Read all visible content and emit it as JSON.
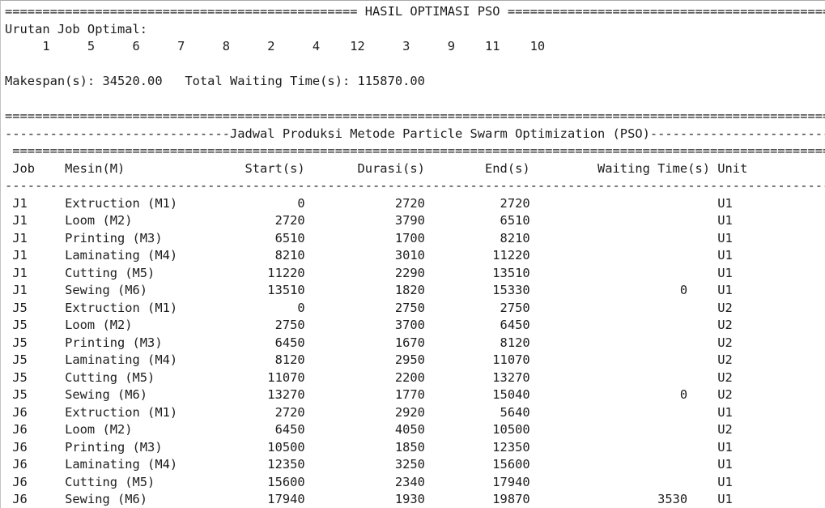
{
  "console": {
    "title": "HASIL OPTIMASI PSO",
    "urutan_label": "Urutan Job Optimal:",
    "job_order": [
      "1",
      "5",
      "6",
      "7",
      "8",
      "2",
      "4",
      "12",
      "3",
      "9",
      "11",
      "10"
    ],
    "makespan_label": "Makespan(s):",
    "makespan_value": "34520.00",
    "total_waiting_label": "Total Waiting Time(s):",
    "total_waiting_value": "115870.00",
    "schedule_title": "Jadwal Produksi Metode Particle Swarm Optimization (PSO)",
    "columns": [
      "Job",
      "Mesin(M)",
      "Start(s)",
      "Durasi(s)",
      "End(s)",
      "Waiting Time(s)",
      "Unit"
    ],
    "rows": [
      [
        "J1",
        "Extruction (M1)",
        "0",
        "2720",
        "2720",
        "",
        "U1"
      ],
      [
        "J1",
        "Loom (M2)",
        "2720",
        "3790",
        "6510",
        "",
        "U1"
      ],
      [
        "J1",
        "Printing (M3)",
        "6510",
        "1700",
        "8210",
        "",
        "U1"
      ],
      [
        "J1",
        "Laminating (M4)",
        "8210",
        "3010",
        "11220",
        "",
        "U1"
      ],
      [
        "J1",
        "Cutting (M5)",
        "11220",
        "2290",
        "13510",
        "",
        "U1"
      ],
      [
        "J1",
        "Sewing (M6)",
        "13510",
        "1820",
        "15330",
        "0",
        "U1"
      ],
      [
        "J5",
        "Extruction (M1)",
        "0",
        "2750",
        "2750",
        "",
        "U2"
      ],
      [
        "J5",
        "Loom (M2)",
        "2750",
        "3700",
        "6450",
        "",
        "U2"
      ],
      [
        "J5",
        "Printing (M3)",
        "6450",
        "1670",
        "8120",
        "",
        "U2"
      ],
      [
        "J5",
        "Laminating (M4)",
        "8120",
        "2950",
        "11070",
        "",
        "U2"
      ],
      [
        "J5",
        "Cutting (M5)",
        "11070",
        "2200",
        "13270",
        "",
        "U2"
      ],
      [
        "J5",
        "Sewing (M6)",
        "13270",
        "1770",
        "15040",
        "0",
        "U2"
      ],
      [
        "J6",
        "Extruction (M1)",
        "2720",
        "2920",
        "5640",
        "",
        "U1"
      ],
      [
        "J6",
        "Loom (M2)",
        "6450",
        "4050",
        "10500",
        "",
        "U2"
      ],
      [
        "J6",
        "Printing (M3)",
        "10500",
        "1850",
        "12350",
        "",
        "U1"
      ],
      [
        "J6",
        "Laminating (M4)",
        "12350",
        "3250",
        "15600",
        "",
        "U1"
      ],
      [
        "J6",
        "Cutting (M5)",
        "15600",
        "2340",
        "17940",
        "",
        "U1"
      ],
      [
        "J6",
        "Sewing (M6)",
        "17940",
        "1930",
        "19870",
        "3530",
        "U1"
      ]
    ]
  }
}
